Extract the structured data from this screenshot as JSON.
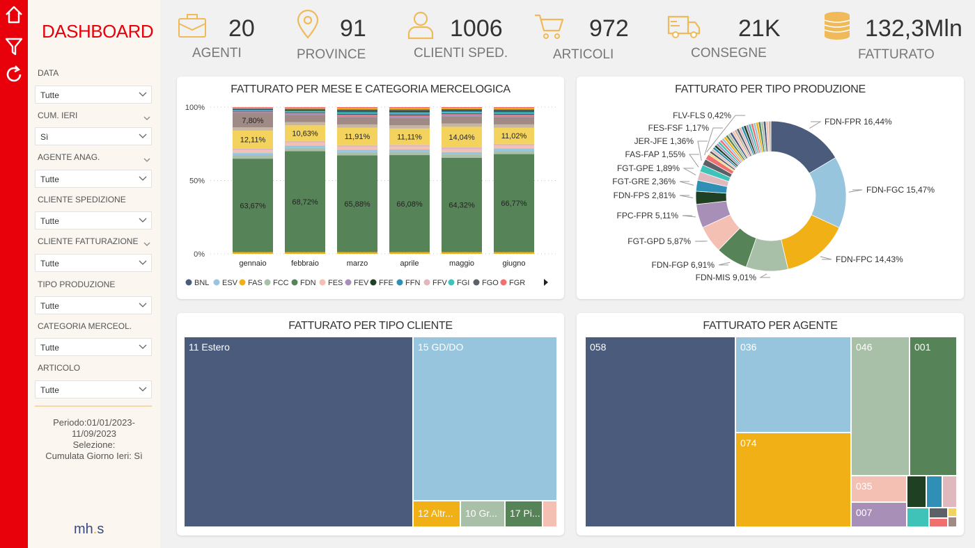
{
  "sidebar": {
    "title": "DASHBOARD",
    "filters": [
      {
        "label": "DATA",
        "value": "Tutte"
      },
      {
        "label": "CUM. IERI",
        "value": "Sì"
      },
      {
        "label": "AGENTE ANAG.",
        "value": "Tutte"
      },
      {
        "label": "CLIENTE SPEDIZIONE",
        "value": "Tutte"
      },
      {
        "label": "CLIENTE FATTURAZIONE",
        "value": "Tutte"
      },
      {
        "label": "TIPO PRODUZIONE",
        "value": "Tutte"
      },
      {
        "label": "CATEGORIA MERCEOL.",
        "value": "Tutte"
      },
      {
        "label": "ARTICOLO",
        "value": "Tutte"
      }
    ],
    "period_lines": [
      "Periodo:01/01/2023-",
      "11/09/2023",
      "Selezione:",
      "Cumulata Giorno Ieri: Sì"
    ],
    "logo_a": "mh",
    "logo_b": ".",
    "logo_c": "s"
  },
  "rail_icons": [
    "home-icon",
    "filter-icon",
    "refresh-icon"
  ],
  "kpis": [
    {
      "value": "20",
      "label": "AGENTI",
      "icon": "briefcase-icon"
    },
    {
      "value": "91",
      "label": "PROVINCE",
      "icon": "map-pin-icon"
    },
    {
      "value": "1006",
      "label": "CLIENTI SPED.",
      "icon": "user-icon"
    },
    {
      "value": "972",
      "label": "ARTICOLI",
      "icon": "cart-icon"
    },
    {
      "value": "21K",
      "label": "CONSEGNE",
      "icon": "truck-icon"
    },
    {
      "value": "132,3Mln",
      "label": "FATTURATO",
      "icon": "coins-icon"
    }
  ],
  "colors": {
    "accent": "#e8000b",
    "kpi_icon": "#f0b95a",
    "BNL": "#4a5b7c",
    "ESV": "#97c5de",
    "FAS": "#f0b016",
    "FCC": "#a9c0a8",
    "FDN": "#578358",
    "FES": "#f4c0b4",
    "FEV": "#a88fb8",
    "FFE": "#1f4022",
    "FFN": "#2f8fb4",
    "FFV": "#e0b9bf",
    "FGI": "#3fc2b8",
    "FGO": "#5c6168",
    "FGR": "#f07070",
    "FCY": "#f3d35e",
    "FBR": "#a08a86"
  },
  "bar_chart": {
    "title": "FATTURATO PER MESE E CATEGORIA MERCELOGICA",
    "y_ticks": [
      "100%",
      "50%",
      "0%"
    ],
    "legend": [
      "BNL",
      "ESV",
      "FAS",
      "FCC",
      "FDN",
      "FES",
      "FEV",
      "FFE",
      "FFN",
      "FFV",
      "FGI",
      "FGO",
      "FGR"
    ]
  },
  "pie_chart": {
    "title": "FATTURATO PER TIPO PRODUZIONE"
  },
  "treemap_cliente": {
    "title": "FATTURATO PER TIPO CLIENTE",
    "items": [
      {
        "label": "11 Estero",
        "color": "#4a5b7c"
      },
      {
        "label": "15 GD/DO",
        "color": "#97c5de"
      },
      {
        "label": "12 Altr...",
        "color": "#f0b016"
      },
      {
        "label": "10 Gr...",
        "color": "#a9c0a8"
      },
      {
        "label": "17 Pi...",
        "color": "#578358"
      },
      {
        "label": "",
        "color": "#f4c0b4"
      }
    ]
  },
  "treemap_agente": {
    "title": "FATTURATO PER AGENTE",
    "items": [
      {
        "label": "058",
        "color": "#4a5b7c"
      },
      {
        "label": "036",
        "color": "#97c5de"
      },
      {
        "label": "074",
        "color": "#f0b016"
      },
      {
        "label": "046",
        "color": "#a9c0a8"
      },
      {
        "label": "001",
        "color": "#578358"
      },
      {
        "label": "035",
        "color": "#f4c0b4"
      },
      {
        "label": "007",
        "color": "#a88fb8"
      }
    ]
  },
  "chart_data": [
    {
      "type": "bar",
      "stacked": "100%",
      "title": "FATTURATO PER MESE E CATEGORIA MERCELOGICA",
      "categories": [
        "gennaio",
        "febbraio",
        "marzo",
        "aprile",
        "maggio",
        "giugno"
      ],
      "ylim": [
        0,
        100
      ],
      "series": [
        {
          "name": "FDN",
          "values": [
            63.67,
            68.72,
            65.88,
            66.08,
            64.32,
            66.77
          ],
          "labels": [
            "63,67%",
            "68,72%",
            "65,88%",
            "66,08%",
            "64,32%",
            "66,77%"
          ]
        },
        {
          "values": [
            12.11,
            10.63,
            11.91,
            11.11,
            14.04,
            11.02
          ],
          "labels": [
            "12,11%",
            "10,63%",
            "11,91%",
            "11,11%",
            "14,04%",
            "11,02%"
          ]
        },
        {
          "values": [
            7.8,
            3.0,
            3.0,
            3.0,
            3.0,
            3.0
          ],
          "labels": [
            "7,80%",
            "",
            "",
            "",
            "",
            ""
          ]
        }
      ]
    },
    {
      "type": "pie",
      "title": "FATTURATO PER TIPO PRODUZIONE",
      "slices": [
        {
          "label": "FDN-FPR 16,44%",
          "value": 16.44,
          "color": "#4a5b7c"
        },
        {
          "label": "FDN-FGC 15,47%",
          "value": 15.47,
          "color": "#97c5de"
        },
        {
          "label": "FDN-FPC 14,43%",
          "value": 14.43,
          "color": "#f0b016"
        },
        {
          "label": "FDN-MIS 9,01%",
          "value": 9.01,
          "color": "#a9c0a8"
        },
        {
          "label": "FDN-FGP 6,91%",
          "value": 6.91,
          "color": "#578358"
        },
        {
          "label": "FGT-GPD 5,87%",
          "value": 5.87,
          "color": "#f4c0b4"
        },
        {
          "label": "FPC-FPR 5,11%",
          "value": 5.11,
          "color": "#a88fb8"
        },
        {
          "label": "FDN-FPS 2,81%",
          "value": 2.81,
          "color": "#1f4022"
        },
        {
          "label": "FGT-GRE 2,36%",
          "value": 2.36,
          "color": "#2f8fb4"
        },
        {
          "label": "FGT-GPE 1,89%",
          "value": 1.89,
          "color": "#e0b9bf"
        },
        {
          "label": "FAS-FAP 1,55%",
          "value": 1.55,
          "color": "#3fc2b8"
        },
        {
          "label": "JER-JFE 1,36%",
          "value": 1.36,
          "color": "#5c6168"
        },
        {
          "label": "FES-FSF 1,17%",
          "value": 1.17,
          "color": "#f07070"
        },
        {
          "label": "FLV-FLS 0,42%",
          "value": 0.42,
          "color": "#f3d35e"
        }
      ]
    }
  ]
}
